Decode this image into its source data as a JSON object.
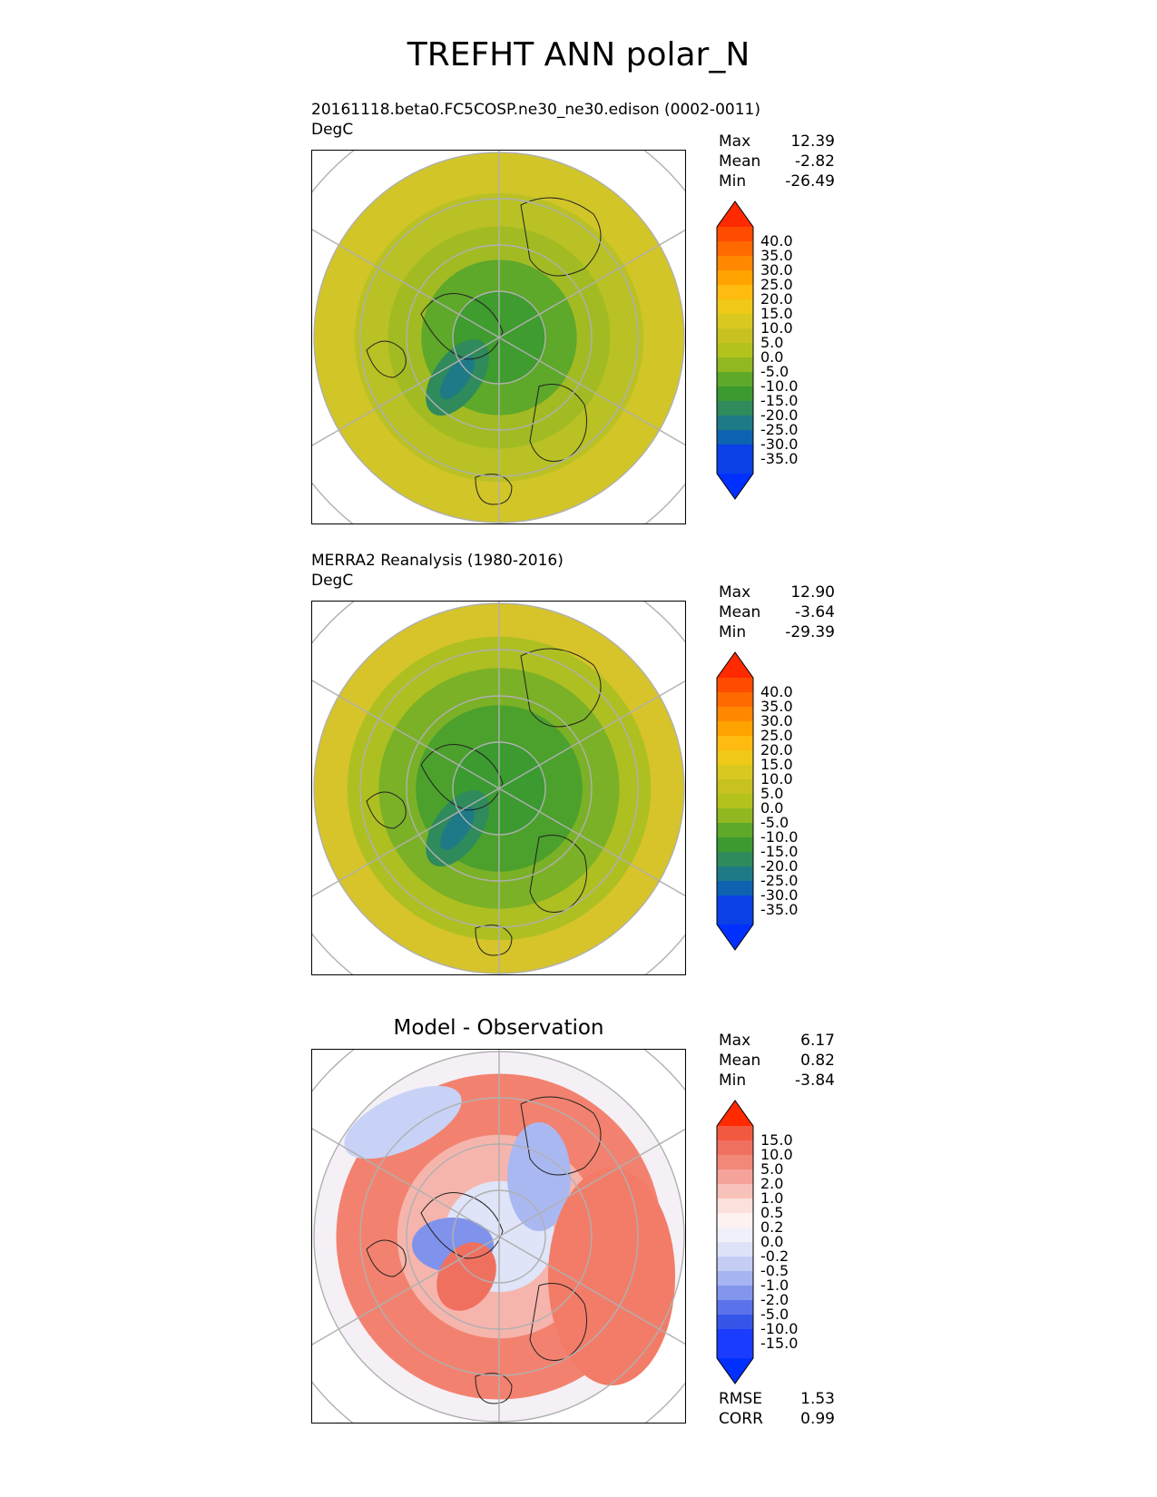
{
  "title": "TREFHT ANN polar_N",
  "panels": [
    {
      "title": "20161118.beta0.FC5COSP.ne30_ne30.edison (0002-0011)",
      "units": "DegC",
      "stats": [
        {
          "label": "Max",
          "value": "12.39"
        },
        {
          "label": "Mean",
          "value": "-2.82"
        },
        {
          "label": "Min",
          "value": "-26.49"
        }
      ],
      "colorbar": [
        "40.0",
        "35.0",
        "30.0",
        "25.0",
        "20.0",
        "15.0",
        "10.0",
        "5.0",
        "0.0",
        "-5.0",
        "-10.0",
        "-15.0",
        "-20.0",
        "-25.0",
        "-30.0",
        "-35.0"
      ],
      "colors": [
        "#ff2a00",
        "#ff4b00",
        "#ff6a00",
        "#ff8800",
        "#ffa300",
        "#ffbb10",
        "#f0c818",
        "#d9c820",
        "#c7c21f",
        "#b3c21d",
        "#91b820",
        "#5ea82a",
        "#3b9a30",
        "#2f8a5c",
        "#1e7a86",
        "#0e63b0",
        "#0a40e6",
        "#0030ff"
      ],
      "rings": [
        {
          "color": "#d2c528",
          "r": 1.0
        },
        {
          "color": "#b9c124",
          "r": 0.78
        },
        {
          "color": "#a2bb22",
          "r": 0.6
        },
        {
          "color": "#5ea82a",
          "r": 0.42
        },
        {
          "color": "#3f9c2e",
          "r": 0.25
        }
      ]
    },
    {
      "title": "MERRA2 Reanalysis (1980-2016)",
      "units": "DegC",
      "stats": [
        {
          "label": "Max",
          "value": "12.90"
        },
        {
          "label": "Mean",
          "value": "-3.64"
        },
        {
          "label": "Min",
          "value": "-29.39"
        }
      ],
      "colorbar": [
        "40.0",
        "35.0",
        "30.0",
        "25.0",
        "20.0",
        "15.0",
        "10.0",
        "5.0",
        "0.0",
        "-5.0",
        "-10.0",
        "-15.0",
        "-20.0",
        "-25.0",
        "-30.0",
        "-35.0"
      ],
      "colors": [
        "#ff2a00",
        "#ff4b00",
        "#ff6a00",
        "#ff8800",
        "#ffa300",
        "#ffbb10",
        "#f0c818",
        "#d9c820",
        "#c7c21f",
        "#b3c21d",
        "#91b820",
        "#5ea82a",
        "#3b9a30",
        "#2f8a5c",
        "#1e7a86",
        "#0e63b0",
        "#0a40e6",
        "#0030ff"
      ],
      "rings": [
        {
          "color": "#d6c42a",
          "r": 1.0
        },
        {
          "color": "#aebf22",
          "r": 0.82
        },
        {
          "color": "#7bb126",
          "r": 0.65
        },
        {
          "color": "#4ba12c",
          "r": 0.45
        },
        {
          "color": "#3b9a30",
          "r": 0.25
        }
      ]
    },
    {
      "title": "Model - Observation",
      "units": "",
      "stats": [
        {
          "label": "Max",
          "value": "6.17"
        },
        {
          "label": "Mean",
          "value": "0.82"
        },
        {
          "label": "Min",
          "value": "-3.84"
        }
      ],
      "colorbar": [
        "15.0",
        "10.0",
        "5.0",
        "2.0",
        "1.0",
        "0.5",
        "0.2",
        "0.0",
        "-0.2",
        "-0.5",
        "-1.0",
        "-2.0",
        "-5.0",
        "-10.0",
        "-15.0"
      ],
      "colors": [
        "#ff2a00",
        "#f25a40",
        "#f07060",
        "#f28878",
        "#f5a39a",
        "#f8c2bb",
        "#fbe0dc",
        "#fdf2f0",
        "#f0f0fb",
        "#dde2f8",
        "#c5cdf5",
        "#a6b4f2",
        "#8296ee",
        "#5a73ea",
        "#3555e8",
        "#1a3cff",
        "#0030ff"
      ],
      "rings": [
        {
          "color": "#f4f0f6",
          "r": 1.0
        },
        {
          "color": "#f2826f",
          "r": 0.88
        },
        {
          "color": "#f6b5ac",
          "r": 0.55
        },
        {
          "color": "#dfe4f8",
          "r": 0.3
        }
      ],
      "error_stats": [
        {
          "label": "RMSE",
          "value": "1.53"
        },
        {
          "label": "CORR",
          "value": "0.99"
        }
      ]
    }
  ]
}
